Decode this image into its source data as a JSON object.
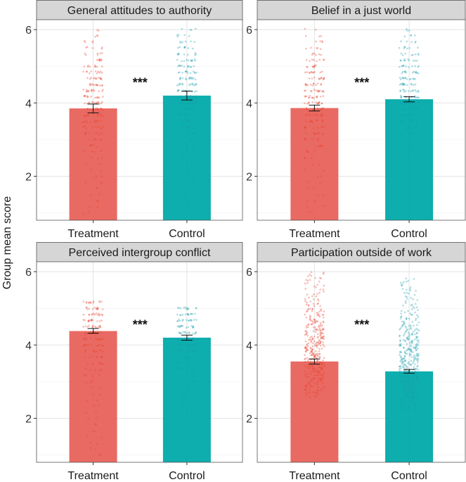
{
  "chart_data": [
    {
      "type": "bar",
      "title": "General attitudes to authority",
      "categories": [
        "Treatment",
        "Control"
      ],
      "values": [
        3.85,
        4.2
      ],
      "error": [
        [
          3.73,
          3.97
        ],
        [
          4.08,
          4.32
        ]
      ],
      "significance": "***",
      "ylim": [
        0.8,
        6.27
      ],
      "yticks": [
        "2",
        "4",
        "6"
      ],
      "point_range": [
        [
          1,
          6
        ],
        [
          1,
          6
        ]
      ],
      "grid": true
    },
    {
      "type": "bar",
      "title": "Belief in a just world",
      "categories": [
        "Treatment",
        "Control"
      ],
      "values": [
        3.86,
        4.1
      ],
      "error": [
        [
          3.78,
          3.94
        ],
        [
          4.03,
          4.17
        ]
      ],
      "significance": "***",
      "ylim": [
        0.8,
        6.27
      ],
      "yticks": [
        "2",
        "4",
        "6"
      ],
      "point_range": [
        [
          1,
          6
        ],
        [
          2.5,
          6
        ]
      ],
      "grid": true
    },
    {
      "type": "bar",
      "title": "Perceived intergroup conflict",
      "categories": [
        "Treatment",
        "Control"
      ],
      "values": [
        4.38,
        4.2
      ],
      "error": [
        [
          4.32,
          4.45
        ],
        [
          4.13,
          4.27
        ]
      ],
      "significance": "***",
      "ylim": [
        0.8,
        6.27
      ],
      "yticks": [
        "2",
        "4",
        "6"
      ],
      "point_range": [
        [
          1,
          5.3
        ],
        [
          1.5,
          5
        ]
      ],
      "grid": true
    },
    {
      "type": "bar",
      "title": "Participation outside of work",
      "categories": [
        "Treatment",
        "Control"
      ],
      "values": [
        3.55,
        3.28
      ],
      "error": [
        [
          3.48,
          3.62
        ],
        [
          3.23,
          3.33
        ]
      ],
      "significance": "***",
      "ylim": [
        0.8,
        6.27
      ],
      "yticks": [
        "2",
        "4",
        "6"
      ],
      "point_range": [
        [
          2.6,
          6
        ],
        [
          2.2,
          5.8
        ]
      ],
      "grid": true
    }
  ],
  "ylabel": "Group mean score",
  "colors": {
    "Treatment": "#e8625a",
    "Control": "#00aaa9",
    "TreatmentPoint": "#e8432f",
    "ControlPoint": "#1a9fb0",
    "strip": "#d6d6d6"
  }
}
